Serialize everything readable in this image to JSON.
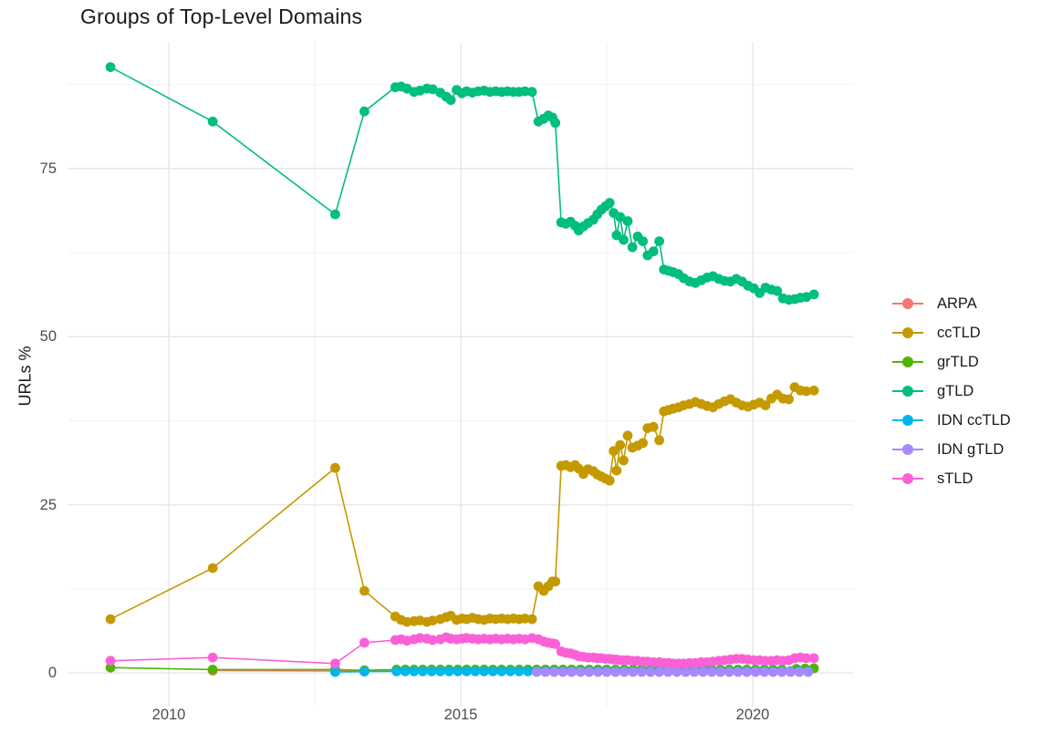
{
  "title": "Groups of Top-Level Domains",
  "y_axis_title": "URLs %",
  "chart_data": {
    "type": "line",
    "title": "Groups of Top-Level Domains",
    "xlabel": "",
    "ylabel": "URLs %",
    "legend_position": "right",
    "grid": "major+minor",
    "axes": {
      "x": {
        "min": 2008.28,
        "max": 2021.72,
        "major": [
          2010,
          2015,
          2020
        ],
        "minor": [
          2012.5,
          2017.5
        ],
        "labels": [
          "2010",
          "2015",
          "2020"
        ]
      },
      "y": {
        "min": -5,
        "max": 93.7,
        "major": [
          0,
          25,
          50,
          75
        ],
        "minor": [
          12.5,
          37.5,
          62.5,
          87.5
        ],
        "labels": [
          "0",
          "25",
          "50",
          "75"
        ]
      }
    },
    "series": [
      {
        "name": "ARPA",
        "color": "#F8766D",
        "points": [
          [
            2010.75,
            0.35
          ],
          [
            2012.85,
            0.3
          ],
          [
            2013.35,
            0.28
          ]
        ],
        "flat_tail": {
          "from": 2013.9,
          "to": 2021.05,
          "step": 0.15,
          "value": 0.3
        }
      },
      {
        "name": "ccTLD",
        "color": "#C49A00",
        "points": [
          [
            2009.0,
            8.0
          ],
          [
            2010.75,
            15.6
          ],
          [
            2012.85,
            30.5
          ],
          [
            2013.35,
            12.2
          ],
          [
            2013.88,
            8.4
          ],
          [
            2013.98,
            7.9
          ],
          [
            2014.08,
            7.6
          ],
          [
            2014.2,
            7.7
          ],
          [
            2014.3,
            7.8
          ],
          [
            2014.42,
            7.6
          ],
          [
            2014.52,
            7.8
          ],
          [
            2014.65,
            8.0
          ],
          [
            2014.75,
            8.3
          ],
          [
            2014.83,
            8.5
          ],
          [
            2014.93,
            7.9
          ],
          [
            2015.02,
            8.1
          ],
          [
            2015.1,
            8.0
          ],
          [
            2015.2,
            8.2
          ],
          [
            2015.3,
            8.0
          ],
          [
            2015.4,
            7.9
          ],
          [
            2015.5,
            8.1
          ],
          [
            2015.6,
            8.0
          ],
          [
            2015.7,
            8.1
          ],
          [
            2015.8,
            8.0
          ],
          [
            2015.9,
            8.1
          ],
          [
            2016.0,
            8.0
          ],
          [
            2016.1,
            8.1
          ],
          [
            2016.22,
            8.0
          ],
          [
            2016.33,
            12.9
          ],
          [
            2016.42,
            12.2
          ],
          [
            2016.5,
            12.9
          ],
          [
            2016.57,
            13.6
          ],
          [
            2016.62,
            13.6
          ],
          [
            2016.72,
            30.8
          ],
          [
            2016.8,
            30.9
          ],
          [
            2016.88,
            30.6
          ],
          [
            2016.96,
            30.9
          ],
          [
            2017.02,
            30.4
          ],
          [
            2017.1,
            29.6
          ],
          [
            2017.18,
            30.3
          ],
          [
            2017.27,
            30.0
          ],
          [
            2017.34,
            29.5
          ],
          [
            2017.41,
            29.2
          ],
          [
            2017.48,
            28.9
          ],
          [
            2017.55,
            28.6
          ],
          [
            2017.62,
            33.0
          ],
          [
            2017.67,
            30.1
          ],
          [
            2017.73,
            33.9
          ],
          [
            2017.79,
            31.6
          ],
          [
            2017.86,
            35.3
          ],
          [
            2017.94,
            33.5
          ],
          [
            2018.03,
            33.8
          ],
          [
            2018.12,
            34.2
          ],
          [
            2018.2,
            36.4
          ],
          [
            2018.3,
            36.6
          ],
          [
            2018.4,
            34.6
          ],
          [
            2018.48,
            38.9
          ],
          [
            2018.56,
            39.1
          ],
          [
            2018.64,
            39.3
          ],
          [
            2018.73,
            39.5
          ],
          [
            2018.82,
            39.8
          ],
          [
            2018.92,
            40.0
          ],
          [
            2019.02,
            40.3
          ],
          [
            2019.12,
            40.0
          ],
          [
            2019.22,
            39.7
          ],
          [
            2019.32,
            39.5
          ],
          [
            2019.42,
            40.0
          ],
          [
            2019.52,
            40.4
          ],
          [
            2019.62,
            40.7
          ],
          [
            2019.72,
            40.2
          ],
          [
            2019.82,
            39.8
          ],
          [
            2019.92,
            39.6
          ],
          [
            2020.02,
            39.9
          ],
          [
            2020.12,
            40.2
          ],
          [
            2020.22,
            39.8
          ],
          [
            2020.32,
            40.8
          ],
          [
            2020.42,
            41.4
          ],
          [
            2020.52,
            40.8
          ],
          [
            2020.62,
            40.7
          ],
          [
            2020.72,
            42.5
          ],
          [
            2020.82,
            42.0
          ],
          [
            2020.92,
            41.9
          ],
          [
            2021.05,
            42.0
          ]
        ]
      },
      {
        "name": "grTLD",
        "color": "#53B400",
        "points": [
          [
            2009.0,
            0.8
          ],
          [
            2010.75,
            0.5
          ],
          [
            2012.85,
            0.5
          ],
          [
            2013.35,
            0.4
          ],
          [
            2020.75,
            0.6
          ],
          [
            2020.9,
            0.65
          ],
          [
            2021.05,
            0.7
          ]
        ],
        "flat_tail": {
          "from": 2013.9,
          "to": 2020.6,
          "step": 0.15,
          "value": 0.5
        }
      },
      {
        "name": "gTLD",
        "color": "#00BE7D",
        "points": [
          [
            2009.0,
            90.1
          ],
          [
            2010.75,
            82.0
          ],
          [
            2012.85,
            68.2
          ],
          [
            2013.35,
            83.5
          ],
          [
            2013.88,
            87.1
          ],
          [
            2013.98,
            87.2
          ],
          [
            2014.08,
            86.9
          ],
          [
            2014.2,
            86.4
          ],
          [
            2014.3,
            86.6
          ],
          [
            2014.42,
            86.9
          ],
          [
            2014.52,
            86.8
          ],
          [
            2014.65,
            86.3
          ],
          [
            2014.75,
            85.7
          ],
          [
            2014.83,
            85.2
          ],
          [
            2014.93,
            86.7
          ],
          [
            2015.02,
            86.2
          ],
          [
            2015.1,
            86.5
          ],
          [
            2015.2,
            86.3
          ],
          [
            2015.3,
            86.5
          ],
          [
            2015.4,
            86.6
          ],
          [
            2015.5,
            86.4
          ],
          [
            2015.6,
            86.5
          ],
          [
            2015.7,
            86.4
          ],
          [
            2015.8,
            86.5
          ],
          [
            2015.9,
            86.4
          ],
          [
            2016.0,
            86.4
          ],
          [
            2016.1,
            86.5
          ],
          [
            2016.22,
            86.4
          ],
          [
            2016.33,
            82.0
          ],
          [
            2016.42,
            82.4
          ],
          [
            2016.5,
            82.9
          ],
          [
            2016.57,
            82.6
          ],
          [
            2016.62,
            81.8
          ],
          [
            2016.72,
            67.0
          ],
          [
            2016.8,
            66.8
          ],
          [
            2016.88,
            67.1
          ],
          [
            2016.96,
            66.5
          ],
          [
            2017.02,
            65.8
          ],
          [
            2017.1,
            66.4
          ],
          [
            2017.18,
            66.9
          ],
          [
            2017.27,
            67.4
          ],
          [
            2017.34,
            68.2
          ],
          [
            2017.41,
            68.9
          ],
          [
            2017.48,
            69.4
          ],
          [
            2017.55,
            69.9
          ],
          [
            2017.62,
            68.4
          ],
          [
            2017.67,
            65.1
          ],
          [
            2017.73,
            67.8
          ],
          [
            2017.79,
            64.4
          ],
          [
            2017.86,
            67.2
          ],
          [
            2017.94,
            63.3
          ],
          [
            2018.03,
            64.9
          ],
          [
            2018.12,
            64.2
          ],
          [
            2018.2,
            62.1
          ],
          [
            2018.3,
            62.7
          ],
          [
            2018.4,
            64.2
          ],
          [
            2018.48,
            60.0
          ],
          [
            2018.56,
            59.8
          ],
          [
            2018.64,
            59.6
          ],
          [
            2018.73,
            59.3
          ],
          [
            2018.82,
            58.7
          ],
          [
            2018.92,
            58.2
          ],
          [
            2019.02,
            58.0
          ],
          [
            2019.12,
            58.4
          ],
          [
            2019.22,
            58.8
          ],
          [
            2019.32,
            59.0
          ],
          [
            2019.42,
            58.6
          ],
          [
            2019.52,
            58.3
          ],
          [
            2019.62,
            58.2
          ],
          [
            2019.72,
            58.6
          ],
          [
            2019.82,
            58.2
          ],
          [
            2019.92,
            57.6
          ],
          [
            2020.02,
            57.2
          ],
          [
            2020.12,
            56.5
          ],
          [
            2020.22,
            57.3
          ],
          [
            2020.32,
            57.0
          ],
          [
            2020.42,
            56.8
          ],
          [
            2020.52,
            55.7
          ],
          [
            2020.62,
            55.5
          ],
          [
            2020.72,
            55.6
          ],
          [
            2020.82,
            55.8
          ],
          [
            2020.92,
            55.9
          ],
          [
            2021.05,
            56.3
          ]
        ]
      },
      {
        "name": "IDN ccTLD",
        "color": "#00B6EB",
        "points": [
          [
            2012.85,
            0.15
          ],
          [
            2013.35,
            0.2
          ]
        ],
        "flat_tail": {
          "from": 2013.9,
          "to": 2021.05,
          "step": 0.15,
          "value": 0.25
        }
      },
      {
        "name": "IDN gTLD",
        "color": "#A58AFF",
        "points": [],
        "flat_tail": {
          "from": 2016.3,
          "to": 2021.05,
          "step": 0.15,
          "value": 0.15
        }
      },
      {
        "name": "sTLD",
        "color": "#FB61D7",
        "points": [
          [
            2009.0,
            1.8
          ],
          [
            2010.75,
            2.3
          ],
          [
            2012.85,
            1.4
          ],
          [
            2013.35,
            4.5
          ],
          [
            2013.88,
            4.9
          ],
          [
            2013.98,
            5.0
          ],
          [
            2014.08,
            4.8
          ],
          [
            2014.2,
            5.0
          ],
          [
            2014.3,
            5.2
          ],
          [
            2014.42,
            5.1
          ],
          [
            2014.52,
            4.9
          ],
          [
            2014.65,
            5.0
          ],
          [
            2014.75,
            5.3
          ],
          [
            2014.83,
            5.1
          ],
          [
            2014.93,
            5.0
          ],
          [
            2015.02,
            5.1
          ],
          [
            2015.1,
            5.2
          ],
          [
            2015.2,
            5.1
          ],
          [
            2015.3,
            5.0
          ],
          [
            2015.4,
            5.1
          ],
          [
            2015.5,
            5.0
          ],
          [
            2015.6,
            5.1
          ],
          [
            2015.7,
            5.0
          ],
          [
            2015.8,
            5.1
          ],
          [
            2015.9,
            5.0
          ],
          [
            2016.0,
            5.1
          ],
          [
            2016.1,
            5.0
          ],
          [
            2016.22,
            5.2
          ],
          [
            2016.33,
            5.0
          ],
          [
            2016.42,
            4.7
          ],
          [
            2016.5,
            4.5
          ],
          [
            2016.57,
            4.4
          ],
          [
            2016.62,
            4.3
          ],
          [
            2016.72,
            3.2
          ],
          [
            2016.8,
            3.0
          ],
          [
            2016.88,
            2.9
          ],
          [
            2016.96,
            2.7
          ],
          [
            2017.02,
            2.5
          ],
          [
            2017.1,
            2.4
          ],
          [
            2017.18,
            2.3
          ],
          [
            2017.27,
            2.3
          ],
          [
            2017.34,
            2.2
          ],
          [
            2017.41,
            2.2
          ],
          [
            2017.48,
            2.1
          ],
          [
            2017.55,
            2.1
          ],
          [
            2017.62,
            2.0
          ],
          [
            2017.67,
            2.0
          ],
          [
            2017.73,
            1.9
          ],
          [
            2017.79,
            1.9
          ],
          [
            2017.86,
            1.9
          ],
          [
            2017.94,
            1.8
          ],
          [
            2018.03,
            1.8
          ],
          [
            2018.12,
            1.7
          ],
          [
            2018.2,
            1.7
          ],
          [
            2018.3,
            1.6
          ],
          [
            2018.4,
            1.6
          ],
          [
            2018.48,
            1.5
          ],
          [
            2018.56,
            1.5
          ],
          [
            2018.64,
            1.4
          ],
          [
            2018.73,
            1.4
          ],
          [
            2018.82,
            1.4
          ],
          [
            2018.92,
            1.5
          ],
          [
            2019.02,
            1.5
          ],
          [
            2019.12,
            1.6
          ],
          [
            2019.22,
            1.6
          ],
          [
            2019.32,
            1.7
          ],
          [
            2019.42,
            1.8
          ],
          [
            2019.52,
            1.9
          ],
          [
            2019.62,
            2.0
          ],
          [
            2019.72,
            2.1
          ],
          [
            2019.82,
            2.1
          ],
          [
            2019.92,
            2.0
          ],
          [
            2020.02,
            1.9
          ],
          [
            2020.12,
            1.9
          ],
          [
            2020.22,
            1.8
          ],
          [
            2020.32,
            1.8
          ],
          [
            2020.42,
            1.9
          ],
          [
            2020.52,
            1.8
          ],
          [
            2020.62,
            1.9
          ],
          [
            2020.72,
            2.2
          ],
          [
            2020.82,
            2.3
          ],
          [
            2020.92,
            2.2
          ],
          [
            2021.05,
            2.2
          ]
        ]
      }
    ],
    "style": {
      "major_grid_color": "#e4e4e4",
      "minor_grid_color": "#f0f0f0",
      "dot_radius": 5.4,
      "line_width": 1.6
    }
  }
}
